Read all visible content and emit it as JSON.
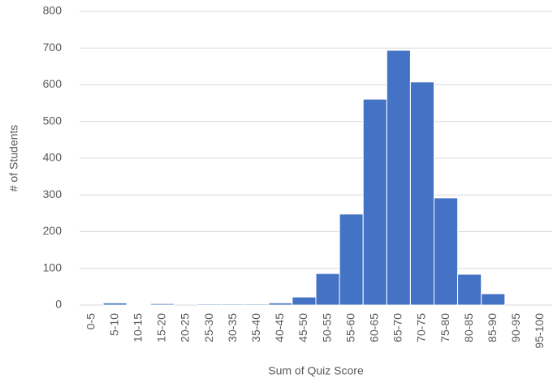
{
  "chart_data": {
    "type": "bar",
    "x_label": "Sum of Quiz Score",
    "y_label": "# of Students",
    "categories": [
      "0-5",
      "5-10",
      "10-15",
      "15-20",
      "20-25",
      "25-30",
      "30-35",
      "35-40",
      "40-45",
      "45-50",
      "50-55",
      "55-60",
      "60-65",
      "65-70",
      "70-75",
      "75-80",
      "80-85",
      "85-90",
      "90-95",
      "95-100"
    ],
    "values": [
      0,
      6,
      1,
      4,
      0,
      3,
      3,
      3,
      6,
      22,
      86,
      248,
      561,
      694,
      608,
      292,
      84,
      31,
      0,
      0
    ],
    "color": "#4472c4",
    "ylim": [
      0,
      800
    ],
    "yticks": [
      0,
      100,
      200,
      300,
      400,
      500,
      600,
      700,
      800
    ],
    "grid": true
  }
}
